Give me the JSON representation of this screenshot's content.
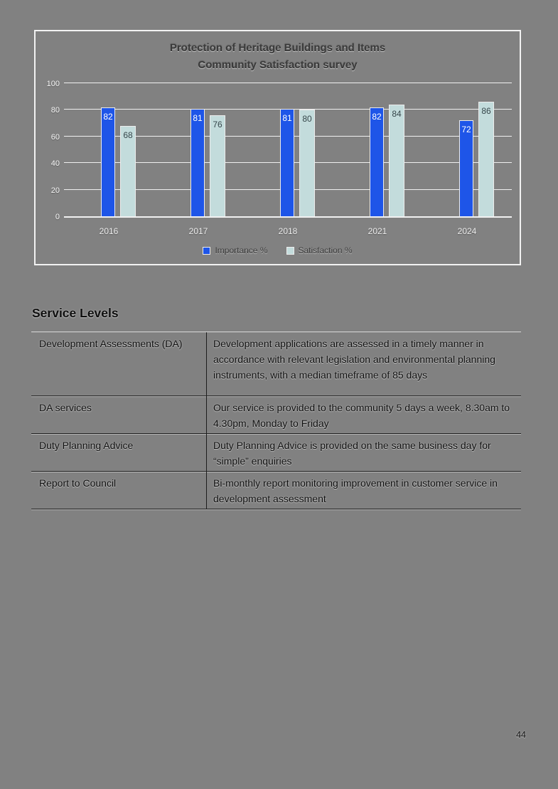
{
  "page": {
    "number": "44",
    "background": "#818181"
  },
  "chart": {
    "title_line1": "Protection of Heritage Buildings and Items",
    "title_line2": "Community Satisfaction survey"
  },
  "chart_data": {
    "type": "bar",
    "title": "Protection of Heritage Buildings and Items",
    "subtitle": "Community Satisfaction survey",
    "categories": [
      "2016",
      "2017",
      "2018",
      "2021",
      "2024"
    ],
    "series": [
      {
        "name": "Importance %",
        "color": "#1e55e8",
        "label_color": "#ffffff",
        "values": [
          82,
          81,
          81,
          82,
          72
        ]
      },
      {
        "name": "Satisfaction %",
        "color": "#c3dcdc",
        "label_color": "#37474b",
        "values": [
          68,
          76,
          80,
          84,
          86
        ]
      }
    ],
    "xlabel": "",
    "ylabel": "",
    "ylim": [
      0,
      100
    ],
    "yticks": [
      0,
      20,
      40,
      60,
      80,
      100
    ],
    "grid": true,
    "gridline_color": "#f0f0f0",
    "legend_position": "bottom"
  },
  "section_heading": "Service Levels",
  "service_table": {
    "rows": [
      {
        "service": "Development Assessments (DA)",
        "level": "Development applications are assessed in a timely manner in accordance with relevant legislation and environmental planning instruments, with a median timeframe of 85 days"
      },
      {
        "service": "DA services",
        "level": "Our service is provided to the community 5 days a week, 8.30am to 4.30pm, Monday to Friday"
      },
      {
        "service": "Duty Planning Advice",
        "level": "Duty Planning Advice is provided on the same business day for “simple” enquiries"
      },
      {
        "service": "Report to Council",
        "level": "Bi-monthly report monitoring improvement in customer service in development assessment"
      }
    ]
  }
}
